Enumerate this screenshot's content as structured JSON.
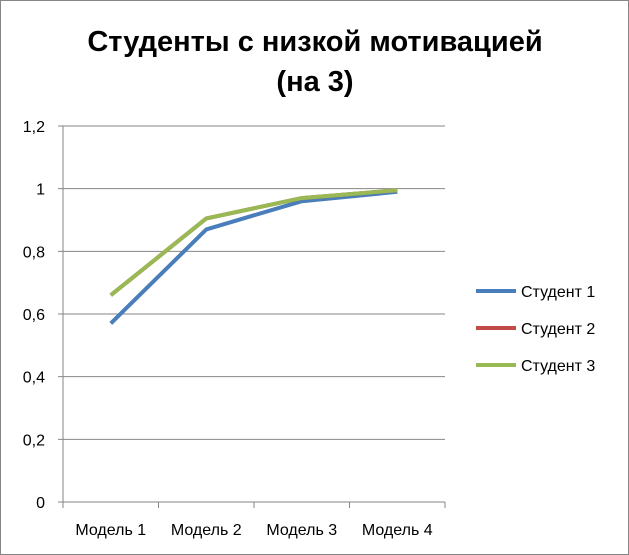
{
  "chart_data": {
    "type": "line",
    "title_line1": "Студенты с низкой мотивацией",
    "title_line2": "(на 3)",
    "categories": [
      "Модель 1",
      "Модель 2",
      "Модель 3",
      "Модель 4"
    ],
    "y_ticks": [
      "0",
      "0,2",
      "0,4",
      "0,6",
      "0,8",
      "1",
      "1,2"
    ],
    "ylim": [
      0,
      1.2
    ],
    "grid": true,
    "legend_position": "right",
    "series": [
      {
        "name": "Студент 1",
        "color": "#4A7EBB",
        "values": [
          0.57,
          0.87,
          0.96,
          0.99
        ]
      },
      {
        "name": "Студент 2",
        "color": "#BE4B48",
        "values": [
          0.66,
          0.905,
          0.97,
          0.995
        ]
      },
      {
        "name": "Студент 3",
        "color": "#98B954",
        "values": [
          0.66,
          0.905,
          0.97,
          0.995
        ]
      }
    ]
  }
}
